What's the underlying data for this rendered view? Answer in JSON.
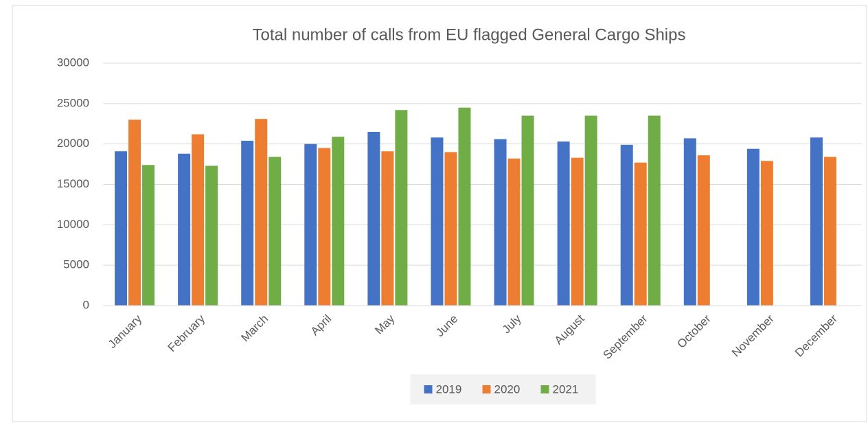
{
  "chart_data": {
    "type": "bar",
    "title": "Total number of calls from EU flagged General Cargo Ships",
    "categories": [
      "January",
      "February",
      "March",
      "April",
      "May",
      "June",
      "July",
      "August",
      "September",
      "October",
      "November",
      "December"
    ],
    "series": [
      {
        "name": "2019",
        "color": "#4472c4",
        "values": [
          19100,
          18800,
          20400,
          20000,
          21500,
          20800,
          20600,
          20300,
          19900,
          20700,
          19400,
          20800
        ]
      },
      {
        "name": "2020",
        "color": "#ed7d31",
        "values": [
          23000,
          21200,
          23100,
          19500,
          19100,
          19000,
          18200,
          18300,
          17700,
          18600,
          17900,
          18400
        ]
      },
      {
        "name": "2021",
        "color": "#70ad47",
        "values": [
          17400,
          17300,
          18400,
          20900,
          24200,
          24500,
          23500,
          23500,
          23500,
          null,
          null,
          null
        ]
      }
    ],
    "ylim": [
      0,
      30000
    ],
    "yticks": [
      0,
      5000,
      10000,
      15000,
      20000,
      25000,
      30000
    ],
    "grid": true,
    "legend": "bottom"
  }
}
